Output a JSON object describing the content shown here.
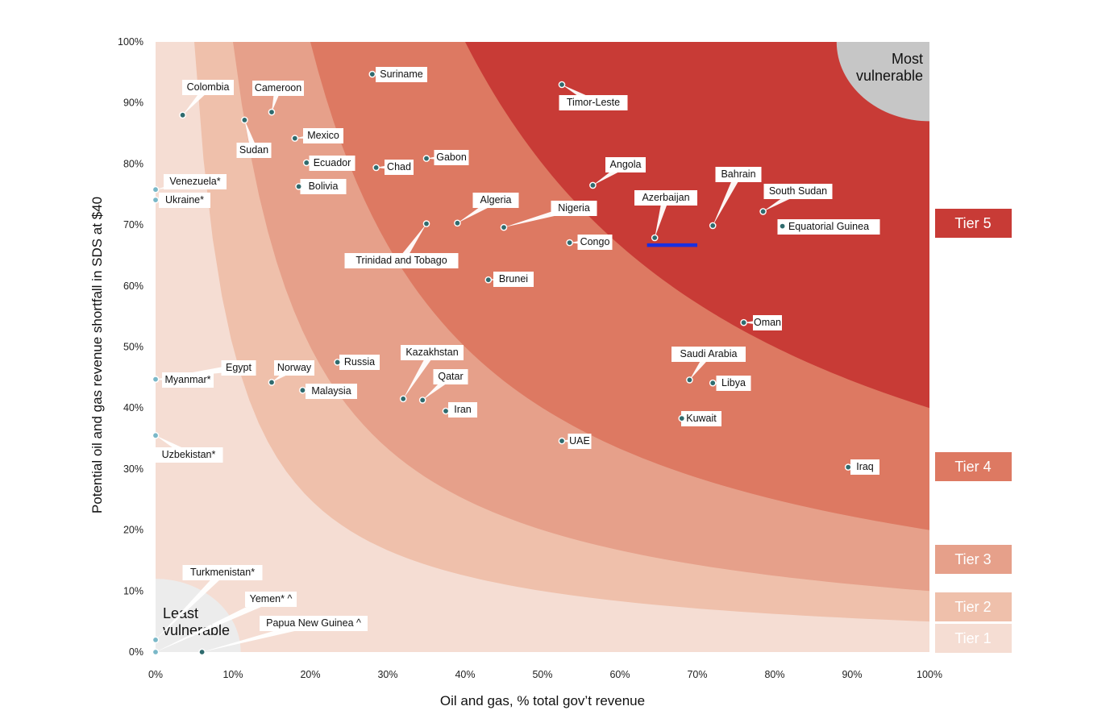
{
  "chart_data": {
    "type": "scatter",
    "xlabel": "Oil and gas, % total gov’t revenue",
    "ylabel": "Potential oil and gas revenue shortfall in SDS at $40",
    "xlim": [
      0,
      100
    ],
    "ylim": [
      0,
      100
    ],
    "x_ticks": [
      "0%",
      "10%",
      "20%",
      "30%",
      "40%",
      "50%",
      "60%",
      "70%",
      "80%",
      "90%",
      "100%"
    ],
    "y_ticks": [
      "0%",
      "10%",
      "20%",
      "30%",
      "40%",
      "50%",
      "60%",
      "70%",
      "80%",
      "90%",
      "100%"
    ],
    "grid": false,
    "legend": "right",
    "tiers": [
      {
        "label": "Tier 1",
        "color": "#f5ddd3"
      },
      {
        "label": "Tier 2",
        "color": "#efc0ab"
      },
      {
        "label": "Tier 3",
        "color": "#e6a08a"
      },
      {
        "label": "Tier 4",
        "color": "#dd7962"
      },
      {
        "label": "Tier 5",
        "color": "#c83b36"
      }
    ],
    "corner_labels": {
      "most": "Most vulnerable",
      "most_lines": [
        "Most",
        "vulnerable"
      ],
      "least": "Least vulnerable",
      "least_lines": [
        "Least",
        "vulnerable"
      ]
    },
    "highlight": {
      "name": "Azerbaijan",
      "x_range": [
        63.5,
        70
      ],
      "y": 66.7,
      "color": "#1a2fe0"
    },
    "points": [
      {
        "name": "Colombia",
        "x": 3.5,
        "y": 88
      },
      {
        "name": "Cameroon",
        "x": 15,
        "y": 88.5
      },
      {
        "name": "Sudan",
        "x": 11.5,
        "y": 87.2
      },
      {
        "name": "Suriname",
        "x": 28,
        "y": 94.7
      },
      {
        "name": "Timor-Leste",
        "x": 52.5,
        "y": 93
      },
      {
        "name": "Mexico",
        "x": 18,
        "y": 84.2
      },
      {
        "name": "Ecuador",
        "x": 19.5,
        "y": 80.2
      },
      {
        "name": "Bolivia",
        "x": 18.5,
        "y": 76.3
      },
      {
        "name": "Chad",
        "x": 28.5,
        "y": 79.4
      },
      {
        "name": "Gabon",
        "x": 35,
        "y": 80.9
      },
      {
        "name": "Venezuela*",
        "x": 0,
        "y": 75.8
      },
      {
        "name": "Ukraine*",
        "x": 0,
        "y": 74.1
      },
      {
        "name": "Angola",
        "x": 56.5,
        "y": 76.5
      },
      {
        "name": "Bahrain",
        "x": 72,
        "y": 69.9
      },
      {
        "name": "South Sudan",
        "x": 78.5,
        "y": 72.2
      },
      {
        "name": "Equatorial Guinea",
        "x": 81,
        "y": 69.8
      },
      {
        "name": "Azerbaijan",
        "x": 64.5,
        "y": 67.9
      },
      {
        "name": "Algeria",
        "x": 39,
        "y": 70.3
      },
      {
        "name": "Nigeria",
        "x": 45,
        "y": 69.6
      },
      {
        "name": "Congo",
        "x": 53.5,
        "y": 67.1
      },
      {
        "name": "Trinidad and Tobago",
        "x": 35,
        "y": 70.2
      },
      {
        "name": "Brunei",
        "x": 43,
        "y": 61
      },
      {
        "name": "Oman",
        "x": 76,
        "y": 54
      },
      {
        "name": "Kazakhstan",
        "x": 32,
        "y": 41.5
      },
      {
        "name": "Qatar",
        "x": 34.5,
        "y": 41.3
      },
      {
        "name": "Iran",
        "x": 37.5,
        "y": 39.5
      },
      {
        "name": "Russia",
        "x": 23.5,
        "y": 47.5
      },
      {
        "name": "Norway",
        "x": 15,
        "y": 44.2
      },
      {
        "name": "Malaysia",
        "x": 19,
        "y": 42.9
      },
      {
        "name": "Egypt",
        "x": 0,
        "y": 44.7
      },
      {
        "name": "Myanmar*",
        "x": 0,
        "y": 44.7
      },
      {
        "name": "Uzbekistan*",
        "x": 0,
        "y": 35.5
      },
      {
        "name": "Saudi Arabia",
        "x": 69,
        "y": 44.6
      },
      {
        "name": "Libya",
        "x": 72,
        "y": 44.1
      },
      {
        "name": "Kuwait",
        "x": 68,
        "y": 38.3
      },
      {
        "name": "UAE",
        "x": 52.5,
        "y": 34.6
      },
      {
        "name": "Iraq",
        "x": 89.5,
        "y": 30.3
      },
      {
        "name": "Turkmenistan*",
        "x": 0,
        "y": 2
      },
      {
        "name": "Yemen* ^",
        "x": 0,
        "y": 0
      },
      {
        "name": "Papua New Guinea ^",
        "x": 6,
        "y": 0
      }
    ]
  }
}
